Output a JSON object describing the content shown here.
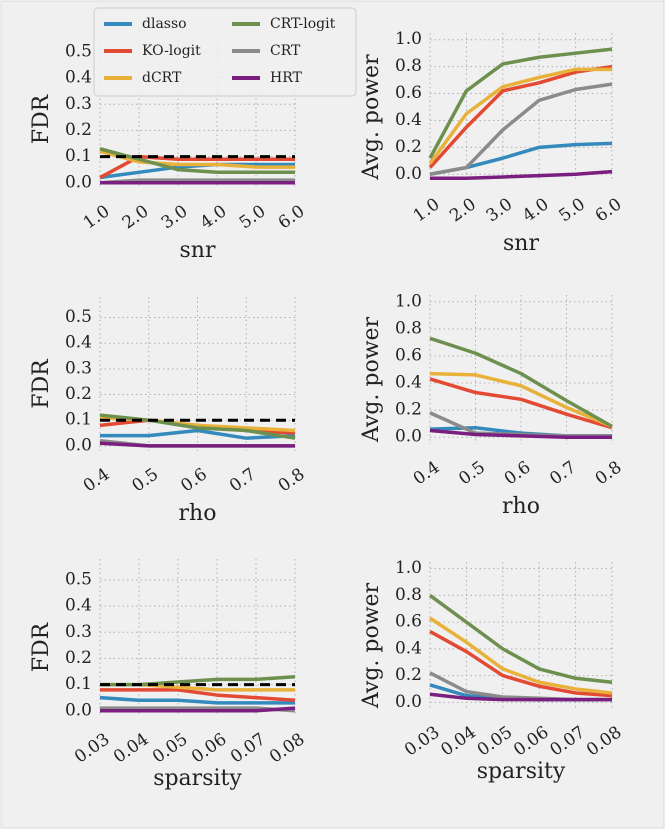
{
  "chart_data": [
    {
      "type": "line",
      "xlabel": "snr",
      "ylabel": "FDR",
      "legend": "upper left",
      "grid": true,
      "hline": 0.1,
      "x": [
        1,
        2,
        3,
        4,
        5,
        6
      ],
      "xlim": [
        1,
        6
      ],
      "xticks": [
        {
          "value": 1,
          "label": "1.0"
        },
        {
          "value": 2,
          "label": "2.0"
        },
        {
          "value": 3,
          "label": "3.0"
        },
        {
          "value": 4,
          "label": "4.0"
        },
        {
          "value": 5,
          "label": "5.0"
        },
        {
          "value": 6,
          "label": "6.0"
        }
      ],
      "ylim": [
        -0.02,
        0.58
      ],
      "yticks": [
        {
          "value": 0,
          "label": "0.0"
        },
        0.1,
        0.2,
        0.3,
        0.4,
        0.5
      ],
      "series": [
        {
          "name": "dlasso",
          "color": "#348abd",
          "values": [
            0.02,
            0.04,
            0.06,
            0.07,
            0.07,
            0.07
          ]
        },
        {
          "name": "KO-logit",
          "color": "#e24a33",
          "values": [
            0.02,
            0.1,
            0.09,
            0.09,
            0.09,
            0.09
          ]
        },
        {
          "name": "dCRT",
          "color": "#e8b13a",
          "values": [
            0.12,
            0.08,
            0.07,
            0.07,
            0.06,
            0.06
          ]
        },
        {
          "name": "CRT-logit",
          "color": "#6d904f",
          "values": [
            0.13,
            0.09,
            0.05,
            0.04,
            0.04,
            0.04
          ]
        },
        {
          "name": "CRT",
          "color": "#8b8b8b",
          "values": [
            0.0,
            0.01,
            0.01,
            0.01,
            0.01,
            0.01
          ]
        },
        {
          "name": "HRT",
          "color": "#7a1f80",
          "values": [
            0.0,
            0.0,
            0.0,
            0.0,
            0.0,
            0.0
          ]
        }
      ]
    },
    {
      "type": "line",
      "xlabel": "snr",
      "ylabel": "Avg. power",
      "grid": true,
      "x": [
        1,
        2,
        3,
        4,
        5,
        6
      ],
      "xlim": [
        1,
        6
      ],
      "xticks": [
        {
          "value": 1,
          "label": "1.0"
        },
        {
          "value": 2,
          "label": "2.0"
        },
        {
          "value": 3,
          "label": "3.0"
        },
        {
          "value": 4,
          "label": "4.0"
        },
        {
          "value": 5,
          "label": "5.0"
        },
        {
          "value": 6,
          "label": "6.0"
        }
      ],
      "ylim": [
        -0.05,
        1.05
      ],
      "yticks": [
        {
          "value": 0,
          "label": "0.0"
        },
        0.2,
        0.4,
        0.6,
        0.8,
        {
          "value": 1,
          "label": "1.0"
        }
      ],
      "series": [
        {
          "color": "#348abd",
          "values": [
            0.0,
            0.05,
            0.12,
            0.2,
            0.22,
            0.23
          ]
        },
        {
          "color": "#e24a33",
          "values": [
            0.05,
            0.35,
            0.62,
            0.68,
            0.76,
            0.8
          ]
        },
        {
          "color": "#e8b13a",
          "values": [
            0.08,
            0.45,
            0.65,
            0.72,
            0.78,
            0.78
          ]
        },
        {
          "color": "#6d904f",
          "values": [
            0.12,
            0.62,
            0.82,
            0.87,
            0.9,
            0.93
          ]
        },
        {
          "color": "#8b8b8b",
          "values": [
            0.0,
            0.05,
            0.33,
            0.55,
            0.63,
            0.67
          ]
        },
        {
          "color": "#7a1f80",
          "values": [
            -0.03,
            -0.03,
            -0.02,
            -0.01,
            0.0,
            0.02
          ]
        }
      ]
    },
    {
      "type": "line",
      "xlabel": "rho",
      "ylabel": "FDR",
      "grid": true,
      "hline": 0.1,
      "x": [
        0.4,
        0.5,
        0.6,
        0.7,
        0.8
      ],
      "xlim": [
        0.4,
        0.8
      ],
      "xticks": [
        0.4,
        0.5,
        0.6,
        0.7,
        0.8
      ],
      "ylim": [
        -0.02,
        0.58
      ],
      "yticks": [
        {
          "value": 0,
          "label": "0.0"
        },
        0.1,
        0.2,
        0.3,
        0.4,
        0.5
      ],
      "series": [
        {
          "color": "#348abd",
          "values": [
            0.04,
            0.04,
            0.06,
            0.03,
            0.04
          ]
        },
        {
          "color": "#e24a33",
          "values": [
            0.08,
            0.1,
            0.08,
            0.06,
            0.05
          ]
        },
        {
          "color": "#e8b13a",
          "values": [
            0.11,
            0.1,
            0.08,
            0.07,
            0.06
          ]
        },
        {
          "color": "#6d904f",
          "values": [
            0.12,
            0.1,
            0.07,
            0.06,
            0.03
          ]
        },
        {
          "color": "#8b8b8b",
          "values": [
            0.02,
            0.0,
            0.0,
            0.0,
            0.0
          ]
        },
        {
          "color": "#7a1f80",
          "values": [
            0.01,
            0.0,
            0.0,
            0.0,
            0.0
          ]
        }
      ]
    },
    {
      "type": "line",
      "xlabel": "rho",
      "ylabel": "Avg. power",
      "grid": true,
      "x": [
        0.4,
        0.5,
        0.6,
        0.7,
        0.8
      ],
      "xlim": [
        0.4,
        0.8
      ],
      "xticks": [
        0.4,
        0.5,
        0.6,
        0.7,
        0.8
      ],
      "ylim": [
        -0.05,
        1.05
      ],
      "yticks": [
        {
          "value": 0,
          "label": "0.0"
        },
        0.2,
        0.4,
        0.6,
        0.8,
        {
          "value": 1,
          "label": "1.0"
        }
      ],
      "series": [
        {
          "color": "#348abd",
          "values": [
            0.06,
            0.07,
            0.03,
            0.01,
            0.01
          ]
        },
        {
          "color": "#e24a33",
          "values": [
            0.43,
            0.33,
            0.28,
            0.17,
            0.07
          ]
        },
        {
          "color": "#e8b13a",
          "values": [
            0.47,
            0.46,
            0.38,
            0.22,
            0.08
          ]
        },
        {
          "color": "#6d904f",
          "values": [
            0.73,
            0.62,
            0.47,
            0.27,
            0.08
          ]
        },
        {
          "color": "#8b8b8b",
          "values": [
            0.18,
            0.03,
            0.02,
            0.01,
            0.01
          ]
        },
        {
          "color": "#7a1f80",
          "values": [
            0.05,
            0.02,
            0.01,
            0.0,
            0.0
          ]
        }
      ]
    },
    {
      "type": "line",
      "xlabel": "sparsity",
      "ylabel": "FDR",
      "grid": true,
      "hline": 0.1,
      "x": [
        0.03,
        0.04,
        0.05,
        0.06,
        0.07,
        0.08
      ],
      "xlim": [
        0.03,
        0.08
      ],
      "xticks": [
        0.03,
        0.04,
        0.05,
        0.06,
        0.07,
        0.08
      ],
      "ylim": [
        -0.02,
        0.58
      ],
      "yticks": [
        {
          "value": 0,
          "label": "0.0"
        },
        0.1,
        0.2,
        0.3,
        0.4,
        0.5
      ],
      "series": [
        {
          "color": "#348abd",
          "values": [
            0.05,
            0.04,
            0.04,
            0.03,
            0.03,
            0.03
          ]
        },
        {
          "color": "#e24a33",
          "values": [
            0.08,
            0.08,
            0.08,
            0.06,
            0.05,
            0.04
          ]
        },
        {
          "color": "#e8b13a",
          "values": [
            0.1,
            0.1,
            0.09,
            0.08,
            0.08,
            0.08
          ]
        },
        {
          "color": "#6d904f",
          "values": [
            0.1,
            0.1,
            0.11,
            0.12,
            0.12,
            0.13
          ]
        },
        {
          "color": "#8b8b8b",
          "values": [
            0.01,
            0.01,
            0.01,
            0.01,
            0.01,
            0.0
          ]
        },
        {
          "color": "#7a1f80",
          "values": [
            0.0,
            0.0,
            0.0,
            0.0,
            0.0,
            0.01
          ]
        }
      ]
    },
    {
      "type": "line",
      "xlabel": "sparsity",
      "ylabel": "Avg. power",
      "grid": true,
      "x": [
        0.03,
        0.04,
        0.05,
        0.06,
        0.07,
        0.08
      ],
      "xlim": [
        0.03,
        0.08
      ],
      "xticks": [
        0.03,
        0.04,
        0.05,
        0.06,
        0.07,
        0.08
      ],
      "ylim": [
        -0.05,
        1.05
      ],
      "yticks": [
        {
          "value": 0,
          "label": "0.0"
        },
        0.2,
        0.4,
        0.6,
        0.8,
        {
          "value": 1,
          "label": "1.0"
        }
      ],
      "series": [
        {
          "color": "#348abd",
          "values": [
            0.13,
            0.05,
            0.03,
            0.02,
            0.02,
            0.02
          ]
        },
        {
          "color": "#e24a33",
          "values": [
            0.53,
            0.38,
            0.2,
            0.12,
            0.07,
            0.05
          ]
        },
        {
          "color": "#e8b13a",
          "values": [
            0.63,
            0.45,
            0.25,
            0.15,
            0.1,
            0.07
          ]
        },
        {
          "color": "#6d904f",
          "values": [
            0.8,
            0.6,
            0.4,
            0.25,
            0.18,
            0.15
          ]
        },
        {
          "color": "#8b8b8b",
          "values": [
            0.22,
            0.08,
            0.04,
            0.03,
            0.02,
            0.02
          ]
        },
        {
          "color": "#7a1f80",
          "values": [
            0.06,
            0.03,
            0.02,
            0.02,
            0.02,
            0.02
          ]
        }
      ]
    }
  ]
}
